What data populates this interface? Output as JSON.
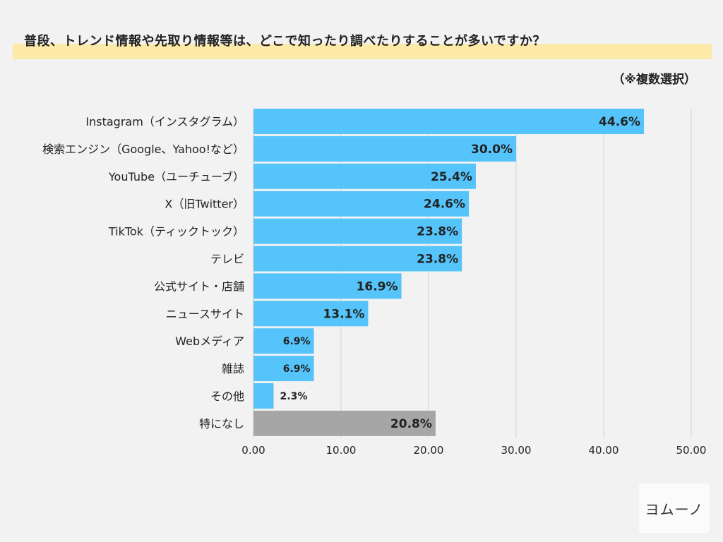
{
  "title": "普段、トレンド情報や先取り情報等は、どこで知ったり調べたりすることが多いですか？",
  "note": "（※複数選択）",
  "logo_text": "ヨムーノ",
  "colors": {
    "bar": "#55c4fb",
    "bar_none": "#a6a6a6",
    "grid": "#d4d4d4",
    "text": "#222222"
  },
  "chart_data": {
    "type": "bar",
    "orientation": "horizontal",
    "title": "普段、トレンド情報や先取り情報等は、どこで知ったり調べたりすることが多いですか？",
    "categories": [
      "Instagram（インスタグラム）",
      "検索エンジン（Google、Yahoo!など）",
      "YouTube（ユーチューブ）",
      "X（旧Twitter）",
      "TikTok（ティックトック）",
      "テレビ",
      "公式サイト・店舗",
      "ニュースサイト",
      "Webメディア",
      "雑誌",
      "その他",
      "特になし"
    ],
    "values": [
      44.6,
      30.0,
      25.4,
      24.6,
      23.8,
      23.8,
      16.9,
      13.1,
      6.9,
      6.9,
      2.3,
      20.8
    ],
    "data_labels": [
      "44.6%",
      "30.0%",
      "25.4%",
      "24.6%",
      "23.8%",
      "23.8%",
      "16.9%",
      "13.1%",
      "6.9%",
      "6.9%",
      "2.3%",
      "20.8%"
    ],
    "highlight_gray": [
      "特になし"
    ],
    "xlim": [
      0,
      50
    ],
    "xticks": [
      0,
      10,
      20,
      30,
      40,
      50
    ],
    "xtick_labels": [
      "0.00",
      "10.00",
      "20.00",
      "30.00",
      "40.00",
      "50.00"
    ],
    "xlabel": "",
    "ylabel": "",
    "grid": true
  }
}
